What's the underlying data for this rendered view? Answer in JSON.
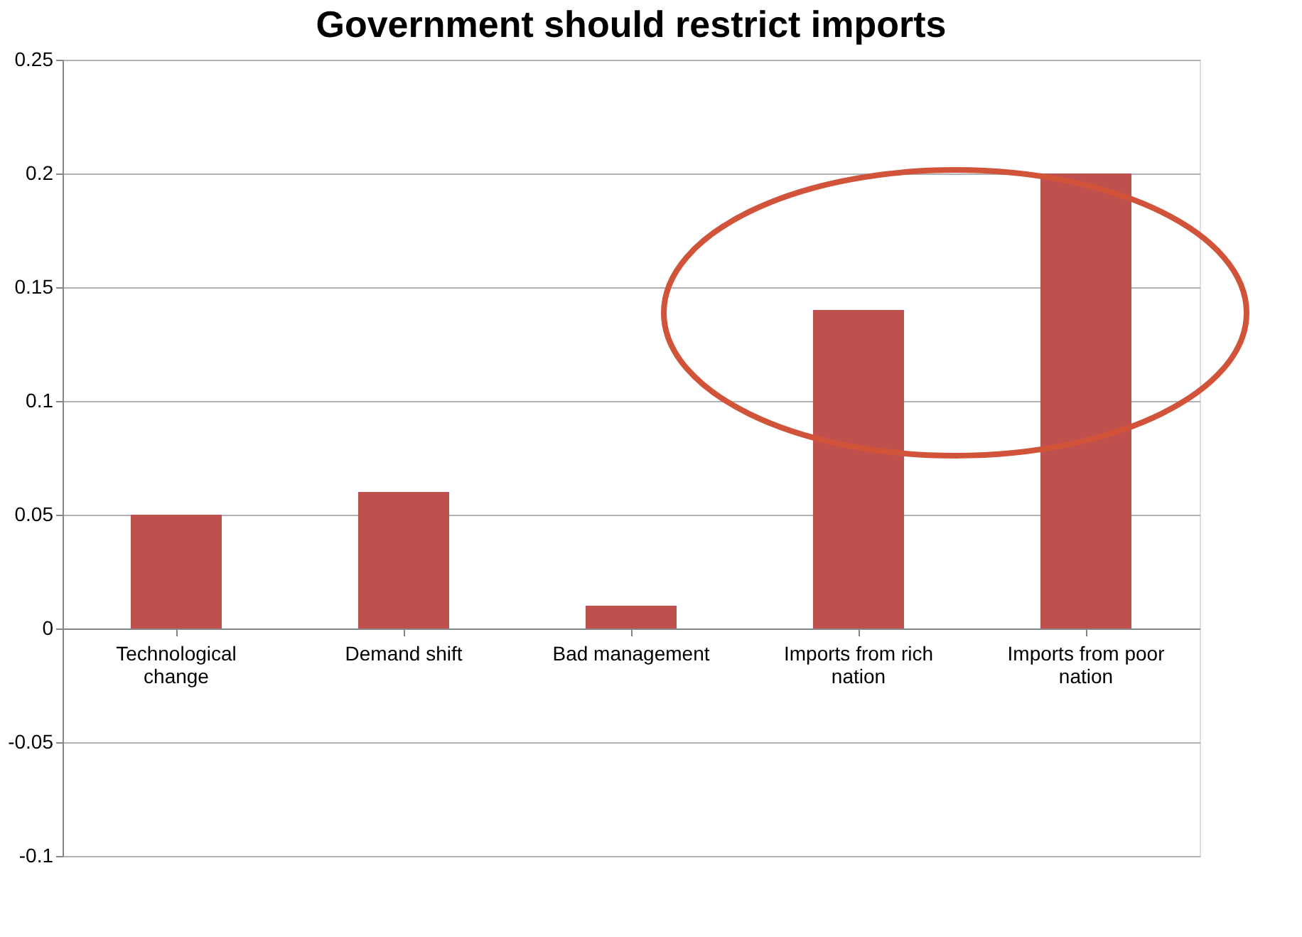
{
  "chart_data": {
    "type": "bar",
    "title": "Government should restrict imports",
    "categories": [
      "Technological change",
      "Demand shift",
      "Bad management",
      "Imports from rich nation",
      "Imports from poor nation"
    ],
    "values": [
      0.05,
      0.06,
      0.01,
      0.14,
      0.2
    ],
    "color": "#c0504d",
    "ylim": [
      -0.1,
      0.25
    ],
    "yticks": [
      -0.1,
      -0.05,
      0,
      0.05,
      0.1,
      0.15,
      0.2,
      0.25
    ],
    "grid": "y"
  }
}
